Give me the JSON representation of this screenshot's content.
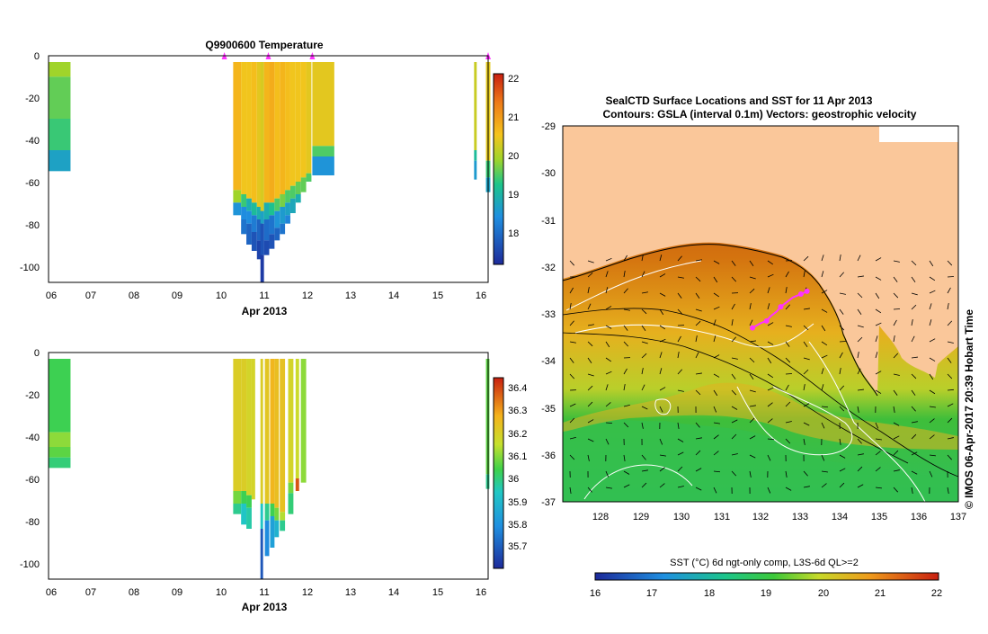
{
  "colors": {
    "land": "#fac79a",
    "frame": "#000000",
    "marker": "#ff33ff",
    "contour": "#ffffff",
    "coast": "#000000"
  },
  "chart_data": [
    {
      "id": "temperature_section",
      "type": "heatmap",
      "title": "Q9900600  Temperature",
      "xlabel": "Apr 2013",
      "ylabel": "",
      "x_ticks": [
        "06",
        "07",
        "08",
        "09",
        "10",
        "11",
        "12",
        "13",
        "14",
        "15",
        "16"
      ],
      "xlim": [
        6,
        16
      ],
      "y_ticks": [
        "0",
        "-20",
        "-40",
        "-60",
        "-80",
        "-100"
      ],
      "ylim": [
        -108,
        0
      ],
      "colorbar": {
        "ticks": [
          "18",
          "19",
          "20",
          "21",
          "22"
        ],
        "range": [
          17.3,
          22.2
        ]
      },
      "profile_markers_day": [
        10,
        11,
        12,
        16
      ],
      "profiles": [
        {
          "day": 6.0,
          "width": 0.5,
          "bottom": -55,
          "cells": [
            [
              -3,
              -10,
              20.0
            ],
            [
              -10,
              -30,
              19.7
            ],
            [
              -30,
              -45,
              19.5
            ],
            [
              -45,
              -55,
              18.8
            ]
          ]
        },
        {
          "day": 10.2,
          "width": 0.18,
          "bottom": -76,
          "cells": [
            [
              -3,
              -64,
              20.8
            ],
            [
              -64,
              -70,
              20.0
            ],
            [
              -70,
              -76,
              18.6
            ]
          ]
        },
        {
          "day": 10.38,
          "width": 0.12,
          "bottom": -85,
          "cells": [
            [
              -3,
              -66,
              20.6
            ],
            [
              -66,
              -72,
              19.5
            ],
            [
              -72,
              -78,
              18.5
            ],
            [
              -78,
              -85,
              18.2
            ]
          ]
        },
        {
          "day": 10.5,
          "width": 0.12,
          "bottom": -90,
          "cells": [
            [
              -3,
              -68,
              20.6
            ],
            [
              -68,
              -74,
              19.0
            ],
            [
              -74,
              -80,
              18.5
            ],
            [
              -80,
              -90,
              18.0
            ]
          ]
        },
        {
          "day": 10.62,
          "width": 0.12,
          "bottom": -93,
          "cells": [
            [
              -3,
              -70,
              20.7
            ],
            [
              -70,
              -76,
              19.2
            ],
            [
              -76,
              -84,
              18.3
            ],
            [
              -84,
              -93,
              17.8
            ]
          ]
        },
        {
          "day": 10.74,
          "width": 0.12,
          "bottom": -97,
          "cells": [
            [
              -3,
              -72,
              20.5
            ],
            [
              -72,
              -78,
              19.0
            ],
            [
              -78,
              -88,
              18.0
            ],
            [
              -88,
              -97,
              17.6
            ]
          ]
        },
        {
          "day": 10.82,
          "width": 0.08,
          "bottom": -108,
          "cells": [
            [
              -3,
              -74,
              20.4
            ],
            [
              -74,
              -80,
              18.8
            ],
            [
              -80,
              -95,
              17.8
            ],
            [
              -95,
              -108,
              17.5
            ]
          ]
        },
        {
          "day": 10.9,
          "width": 0.12,
          "bottom": -95,
          "cells": [
            [
              -3,
              -70,
              20.8
            ],
            [
              -70,
              -78,
              19.0
            ],
            [
              -78,
              -88,
              18.1
            ],
            [
              -88,
              -95,
              17.7
            ]
          ]
        },
        {
          "day": 11.02,
          "width": 0.12,
          "bottom": -92,
          "cells": [
            [
              -3,
              -70,
              20.9
            ],
            [
              -70,
              -76,
              19.3
            ],
            [
              -76,
              -85,
              18.2
            ],
            [
              -85,
              -92,
              17.8
            ]
          ]
        },
        {
          "day": 11.14,
          "width": 0.12,
          "bottom": -88,
          "cells": [
            [
              -3,
              -68,
              20.7
            ],
            [
              -68,
              -74,
              19.6
            ],
            [
              -74,
              -82,
              18.6
            ],
            [
              -82,
              -88,
              18.0
            ]
          ]
        },
        {
          "day": 11.26,
          "width": 0.12,
          "bottom": -85,
          "cells": [
            [
              -3,
              -66,
              20.8
            ],
            [
              -66,
              -72,
              19.8
            ],
            [
              -72,
              -80,
              18.7
            ],
            [
              -80,
              -85,
              18.2
            ]
          ]
        },
        {
          "day": 11.38,
          "width": 0.12,
          "bottom": -80,
          "cells": [
            [
              -3,
              -64,
              20.7
            ],
            [
              -64,
              -70,
              19.6
            ],
            [
              -70,
              -76,
              18.8
            ],
            [
              -76,
              -80,
              18.4
            ]
          ]
        },
        {
          "day": 11.5,
          "width": 0.12,
          "bottom": -75,
          "cells": [
            [
              -3,
              -62,
              20.6
            ],
            [
              -62,
              -68,
              19.6
            ],
            [
              -68,
              -75,
              18.9
            ]
          ]
        },
        {
          "day": 11.62,
          "width": 0.12,
          "bottom": -70,
          "cells": [
            [
              -3,
              -60,
              20.6
            ],
            [
              -60,
              -66,
              19.7
            ],
            [
              -66,
              -70,
              19.0
            ]
          ]
        },
        {
          "day": 11.74,
          "width": 0.12,
          "bottom": -65,
          "cells": [
            [
              -3,
              -58,
              20.6
            ],
            [
              -58,
              -65,
              19.7
            ]
          ]
        },
        {
          "day": 11.86,
          "width": 0.12,
          "bottom": -60,
          "cells": [
            [
              -3,
              -56,
              20.5
            ],
            [
              -56,
              -60,
              19.6
            ]
          ]
        },
        {
          "day": 12.0,
          "width": 0.5,
          "bottom": -57,
          "cells": [
            [
              -3,
              -43,
              20.5
            ],
            [
              -43,
              -48,
              19.6
            ],
            [
              -48,
              -57,
              18.6
            ]
          ]
        },
        {
          "day": 15.68,
          "width": 0.06,
          "bottom": -59,
          "cells": [
            [
              -3,
              -45,
              20.3
            ],
            [
              -45,
              -50,
              19.2
            ],
            [
              -50,
              -59,
              18.7
            ]
          ]
        },
        {
          "day": 15.95,
          "width": 0.1,
          "bottom": -65,
          "cells": [
            [
              -3,
              -50,
              20.5
            ],
            [
              -50,
              -58,
              19.5
            ],
            [
              -58,
              -65,
              18.8
            ]
          ]
        }
      ]
    },
    {
      "id": "salinity_section",
      "type": "heatmap",
      "title": "",
      "xlabel": "Apr 2013",
      "ylabel": "",
      "x_ticks": [
        "06",
        "07",
        "08",
        "09",
        "10",
        "11",
        "12",
        "13",
        "14",
        "15",
        "16"
      ],
      "xlim": [
        6,
        16
      ],
      "y_ticks": [
        "0",
        "-20",
        "-40",
        "-60",
        "-80",
        "-100"
      ],
      "ylim": [
        -108,
        0
      ],
      "colorbar": {
        "ticks": [
          "35.7",
          "35.8",
          "35.9",
          "36",
          "36.1",
          "36.2",
          "36.3",
          "36.4"
        ],
        "range": [
          35.62,
          36.46
        ]
      },
      "profiles": [
        {
          "day": 6.0,
          "width": 0.5,
          "bottom": -55,
          "cells": [
            [
              -3,
              -38,
              36.05
            ],
            [
              -38,
              -45,
              36.12
            ],
            [
              -45,
              -50,
              36.08
            ],
            [
              -50,
              -55,
              36.02
            ]
          ]
        },
        {
          "day": 10.2,
          "width": 0.18,
          "bottom": -77,
          "cells": [
            [
              -3,
              -66,
              36.22
            ],
            [
              -66,
              -72,
              36.1
            ],
            [
              -72,
              -77,
              36.0
            ]
          ]
        },
        {
          "day": 10.38,
          "width": 0.12,
          "bottom": -82,
          "cells": [
            [
              -3,
              -66,
              36.22
            ],
            [
              -66,
              -72,
              36.05
            ],
            [
              -72,
              -82,
              35.95
            ]
          ]
        },
        {
          "day": 10.5,
          "width": 0.12,
          "bottom": -84,
          "cells": [
            [
              -3,
              -68,
              36.2
            ],
            [
              -68,
              -74,
              36.05
            ],
            [
              -74,
              -84,
              35.98
            ]
          ]
        },
        {
          "day": 10.62,
          "width": 0.08,
          "bottom": -70,
          "cells": [
            [
              -3,
              -70,
              36.2
            ]
          ]
        },
        {
          "day": 10.82,
          "width": 0.06,
          "bottom": -108,
          "cells": [
            [
              -3,
              -72,
              36.22
            ],
            [
              -72,
              -84,
              35.95
            ],
            [
              -84,
              -108,
              35.7
            ]
          ]
        },
        {
          "day": 10.92,
          "width": 0.1,
          "bottom": -97,
          "cells": [
            [
              -3,
              -72,
              36.24
            ],
            [
              -72,
              -80,
              36.0
            ],
            [
              -80,
              -97,
              35.8
            ]
          ]
        },
        {
          "day": 11.04,
          "width": 0.1,
          "bottom": -93,
          "cells": [
            [
              -3,
              -72,
              36.28
            ],
            [
              -72,
              -78,
              36.05
            ],
            [
              -78,
              -93,
              35.85
            ]
          ]
        },
        {
          "day": 11.14,
          "width": 0.1,
          "bottom": -88,
          "cells": [
            [
              -3,
              -74,
              36.26
            ],
            [
              -74,
              -80,
              36.1
            ],
            [
              -80,
              -88,
              35.9
            ]
          ]
        },
        {
          "day": 11.26,
          "width": 0.12,
          "bottom": -85,
          "cells": [
            [
              -3,
              -76,
              36.25
            ],
            [
              -76,
              -80,
              36.15
            ],
            [
              -80,
              -85,
              36.0
            ]
          ]
        },
        {
          "day": 11.45,
          "width": 0.12,
          "bottom": -77,
          "cells": [
            [
              -3,
              -62,
              36.2
            ],
            [
              -62,
              -67,
              36.1
            ],
            [
              -67,
              -77,
              36.02
            ]
          ]
        },
        {
          "day": 11.62,
          "width": 0.08,
          "bottom": -66,
          "cells": [
            [
              -3,
              -60,
              36.18
            ],
            [
              -60,
              -66,
              36.4
            ]
          ]
        },
        {
          "day": 11.74,
          "width": 0.12,
          "bottom": -62,
          "cells": [
            [
              -3,
              -62,
              36.12
            ]
          ]
        },
        {
          "day": 15.95,
          "width": 0.08,
          "bottom": -65,
          "cells": [
            [
              -3,
              -58,
              36.08
            ],
            [
              -58,
              -65,
              36.0
            ]
          ]
        }
      ]
    },
    {
      "id": "sst_map",
      "type": "heatmap",
      "title": "SealCTD Surface Locations and SST for 11 Apr 2013",
      "subtitle": "Contours: GSLA (interval 0.1m) Vectors: geostrophic velocity",
      "xlabel": "",
      "ylabel": "",
      "x_ticks": [
        "128",
        "129",
        "130",
        "131",
        "132",
        "133",
        "134",
        "135",
        "136",
        "137"
      ],
      "xlim": [
        127.2,
        137
      ],
      "y_ticks": [
        "-29",
        "-30",
        "-31",
        "-32",
        "-33",
        "-34",
        "-35",
        "-36",
        "-37"
      ],
      "ylim": [
        -37,
        -29
      ],
      "colorbar": {
        "label": "SST (°C) 6d ngt-only comp, L3S-6d QL>=2",
        "ticks": [
          "16",
          "17",
          "18",
          "19",
          "20",
          "21",
          "22"
        ],
        "range": [
          16,
          22
        ]
      },
      "seal_track": [
        [
          131.9,
          -33.3
        ],
        [
          132.0,
          -33.25
        ],
        [
          132.1,
          -33.2
        ],
        [
          132.25,
          -33.15
        ],
        [
          132.35,
          -33.05
        ],
        [
          132.5,
          -32.95
        ],
        [
          132.6,
          -32.85
        ],
        [
          132.75,
          -32.75
        ],
        [
          132.9,
          -32.65
        ],
        [
          133.1,
          -32.58
        ],
        [
          133.25,
          -32.52
        ]
      ],
      "side_label": "© IMOS 06-Apr-2017 20:39 Hobart Time"
    }
  ]
}
